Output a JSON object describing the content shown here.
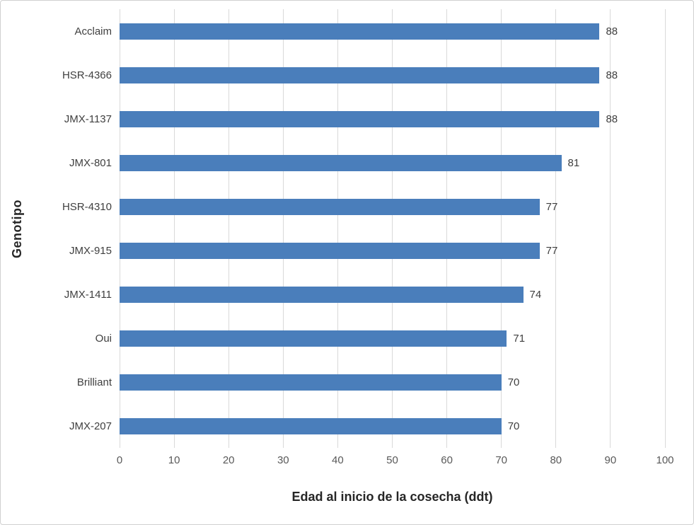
{
  "chart_data": {
    "type": "bar",
    "orientation": "horizontal",
    "title": "",
    "xlabel": "Edad al inicio de la cosecha (ddt)",
    "ylabel": "Genotipo",
    "categories": [
      "Acclaim",
      "HSR-4366",
      "JMX-1137",
      "JMX-801",
      "HSR-4310",
      "JMX-915",
      "JMX-1411",
      "Oui",
      "Brilliant",
      "JMX-207"
    ],
    "values": [
      88,
      88,
      88,
      81,
      77,
      77,
      74,
      71,
      70,
      70
    ],
    "xlim": [
      0,
      100
    ],
    "xticks": [
      0,
      10,
      20,
      30,
      40,
      50,
      60,
      70,
      80,
      90,
      100
    ],
    "grid": "vertical",
    "legend": "none",
    "data_labels": true
  },
  "colors": {
    "bar": "#4a7ebb",
    "gridline": "#d9d9d9",
    "tick_text": "#595959",
    "category_text": "#3f3f3f",
    "value_text": "#3f3f3f",
    "axis_title_text": "#262626",
    "border": "#d0d0d0",
    "background": "#ffffff"
  }
}
